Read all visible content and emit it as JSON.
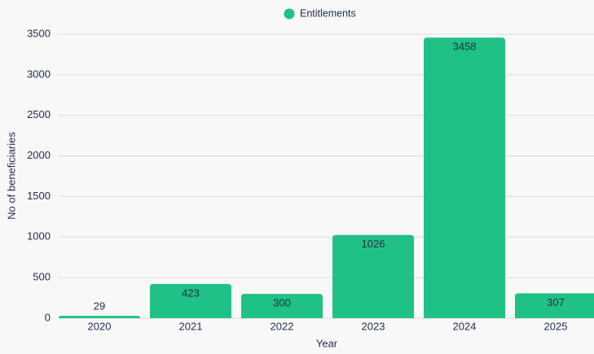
{
  "chart_data": {
    "type": "bar",
    "categories": [
      "2020",
      "2021",
      "2022",
      "2023",
      "2024",
      "2025"
    ],
    "series": [
      {
        "name": "Entitlements",
        "color": "#20c185",
        "values": [
          29,
          423,
          300,
          1026,
          3458,
          307
        ]
      }
    ],
    "x_label": "Year",
    "y_label": "No of beneficiaries",
    "ylim": [
      0,
      3500
    ],
    "yticks": [
      0,
      500,
      1000,
      1500,
      2000,
      2500,
      3000,
      3500
    ],
    "grid": true,
    "legend": "top"
  }
}
